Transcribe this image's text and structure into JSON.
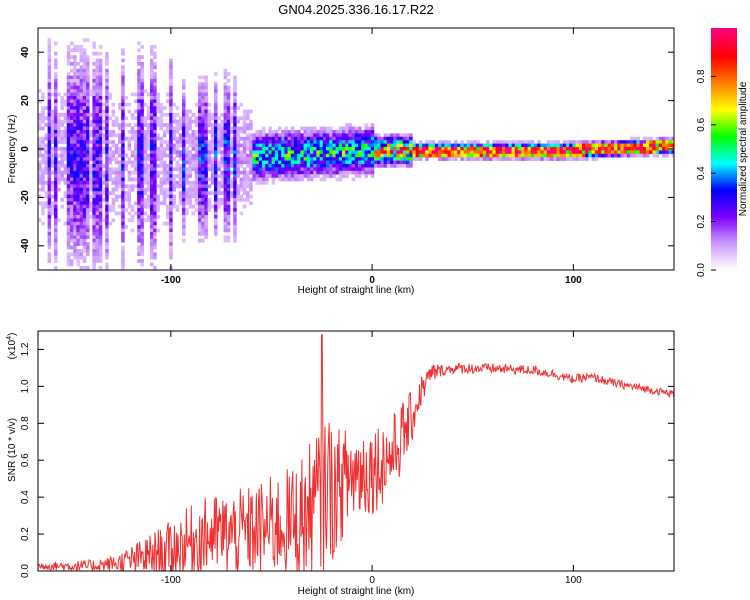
{
  "title": "GN04.2025.336.16.17.R22",
  "chart_data": [
    {
      "type": "heatmap",
      "xlabel": "Height of straight line (km)",
      "ylabel": "Frequency (Hz)",
      "xlim": [
        -166,
        150
      ],
      "ylim": [
        -50,
        50
      ],
      "x_ticks": [
        -100,
        0,
        100
      ],
      "y_ticks": [
        -40,
        -20,
        0,
        20,
        40
      ],
      "colorbar": {
        "label": "Normalized spectral amplitude",
        "range": [
          0,
          1
        ],
        "ticks": [
          "0.0",
          "0.2",
          "0.4",
          "0.6",
          "0.8"
        ],
        "colormap": [
          "#ffffff",
          "#cc99ff",
          "#7a00ff",
          "#0000ff",
          "#00ffff",
          "#00ff00",
          "#ffff00",
          "#ff8000",
          "#ff0000",
          "#ff0080"
        ]
      },
      "features": [
        {
          "x_range": [
            -166,
            -100
          ],
          "spread_hz": 50,
          "level": 0.25
        },
        {
          "x_range": [
            -100,
            -60
          ],
          "spread_hz": 35,
          "level": 0.3
        },
        {
          "x_range": [
            -60,
            0
          ],
          "spread_hz": 10,
          "level": 0.45
        },
        {
          "x_range": [
            0,
            20
          ],
          "spread_hz": 6,
          "level": 0.7
        },
        {
          "x_range": [
            20,
            150
          ],
          "spread_hz": 3,
          "level": 0.85
        }
      ],
      "ridge_center_hz": [
        {
          "x": -166,
          "y": -3
        },
        {
          "x": -100,
          "y": -4
        },
        {
          "x": -50,
          "y": -2
        },
        {
          "x": 0,
          "y": 0
        },
        {
          "x": 50,
          "y": 0
        },
        {
          "x": 100,
          "y": 0
        },
        {
          "x": 150,
          "y": 2
        }
      ]
    },
    {
      "type": "line",
      "xlabel": "Height of straight line (km)",
      "ylabel": "SNR (10 * v/v)",
      "y_multiplier": "(x10",
      "y_multiplier_exp": "4",
      "y_multiplier_close": ")",
      "xlim": [
        -166,
        150
      ],
      "ylim": [
        0,
        1.3
      ],
      "x_ticks": [
        -100,
        0,
        100
      ],
      "y_ticks": [
        "0.0",
        "0.2",
        "0.4",
        "0.6",
        "0.8",
        "1.0",
        "1.2"
      ],
      "y_tick_values": [
        0,
        0.2,
        0.4,
        0.6,
        0.8,
        1.0,
        1.2
      ],
      "color": "#f03030",
      "series": [
        {
          "points": [
            {
              "x": -166,
              "y": 0.03
            },
            {
              "x": -140,
              "y": 0.03
            },
            {
              "x": -125,
              "y": 0.05
            },
            {
              "x": -115,
              "y": 0.08
            },
            {
              "x": -100,
              "y": 0.13
            },
            {
              "x": -90,
              "y": 0.18
            },
            {
              "x": -80,
              "y": 0.22
            },
            {
              "x": -70,
              "y": 0.22
            },
            {
              "x": -60,
              "y": 0.24
            },
            {
              "x": -50,
              "y": 0.27
            },
            {
              "x": -40,
              "y": 0.3
            },
            {
              "x": -30,
              "y": 0.35
            },
            {
              "x": -25,
              "y": 0.45
            },
            {
              "x": -22,
              "y": 0.55
            },
            {
              "x": -20,
              "y": 0.45
            },
            {
              "x": -15,
              "y": 0.5
            },
            {
              "x": -10,
              "y": 0.55
            },
            {
              "x": 0,
              "y": 0.58
            },
            {
              "x": 10,
              "y": 0.65
            },
            {
              "x": 20,
              "y": 0.85
            },
            {
              "x": 25,
              "y": 1.0
            },
            {
              "x": 30,
              "y": 1.08
            },
            {
              "x": 40,
              "y": 1.1
            },
            {
              "x": 60,
              "y": 1.1
            },
            {
              "x": 80,
              "y": 1.09
            },
            {
              "x": 90,
              "y": 1.07
            },
            {
              "x": 100,
              "y": 1.04
            },
            {
              "x": 105,
              "y": 1.05
            },
            {
              "x": 110,
              "y": 1.05
            },
            {
              "x": 120,
              "y": 1.02
            },
            {
              "x": 135,
              "y": 0.99
            },
            {
              "x": 150,
              "y": 0.96
            }
          ]
        }
      ],
      "noise_amplitude": [
        {
          "x": -166,
          "a": 0.02
        },
        {
          "x": -130,
          "a": 0.04
        },
        {
          "x": -110,
          "a": 0.12
        },
        {
          "x": -90,
          "a": 0.2
        },
        {
          "x": -60,
          "a": 0.25
        },
        {
          "x": -40,
          "a": 0.3
        },
        {
          "x": -25,
          "a": 0.45
        },
        {
          "x": -15,
          "a": 0.3
        },
        {
          "x": 0,
          "a": 0.25
        },
        {
          "x": 15,
          "a": 0.2
        },
        {
          "x": 25,
          "a": 0.08
        },
        {
          "x": 35,
          "a": 0.03
        },
        {
          "x": 150,
          "a": 0.02
        }
      ],
      "peak": {
        "x": -25,
        "y": 1.28
      }
    }
  ]
}
